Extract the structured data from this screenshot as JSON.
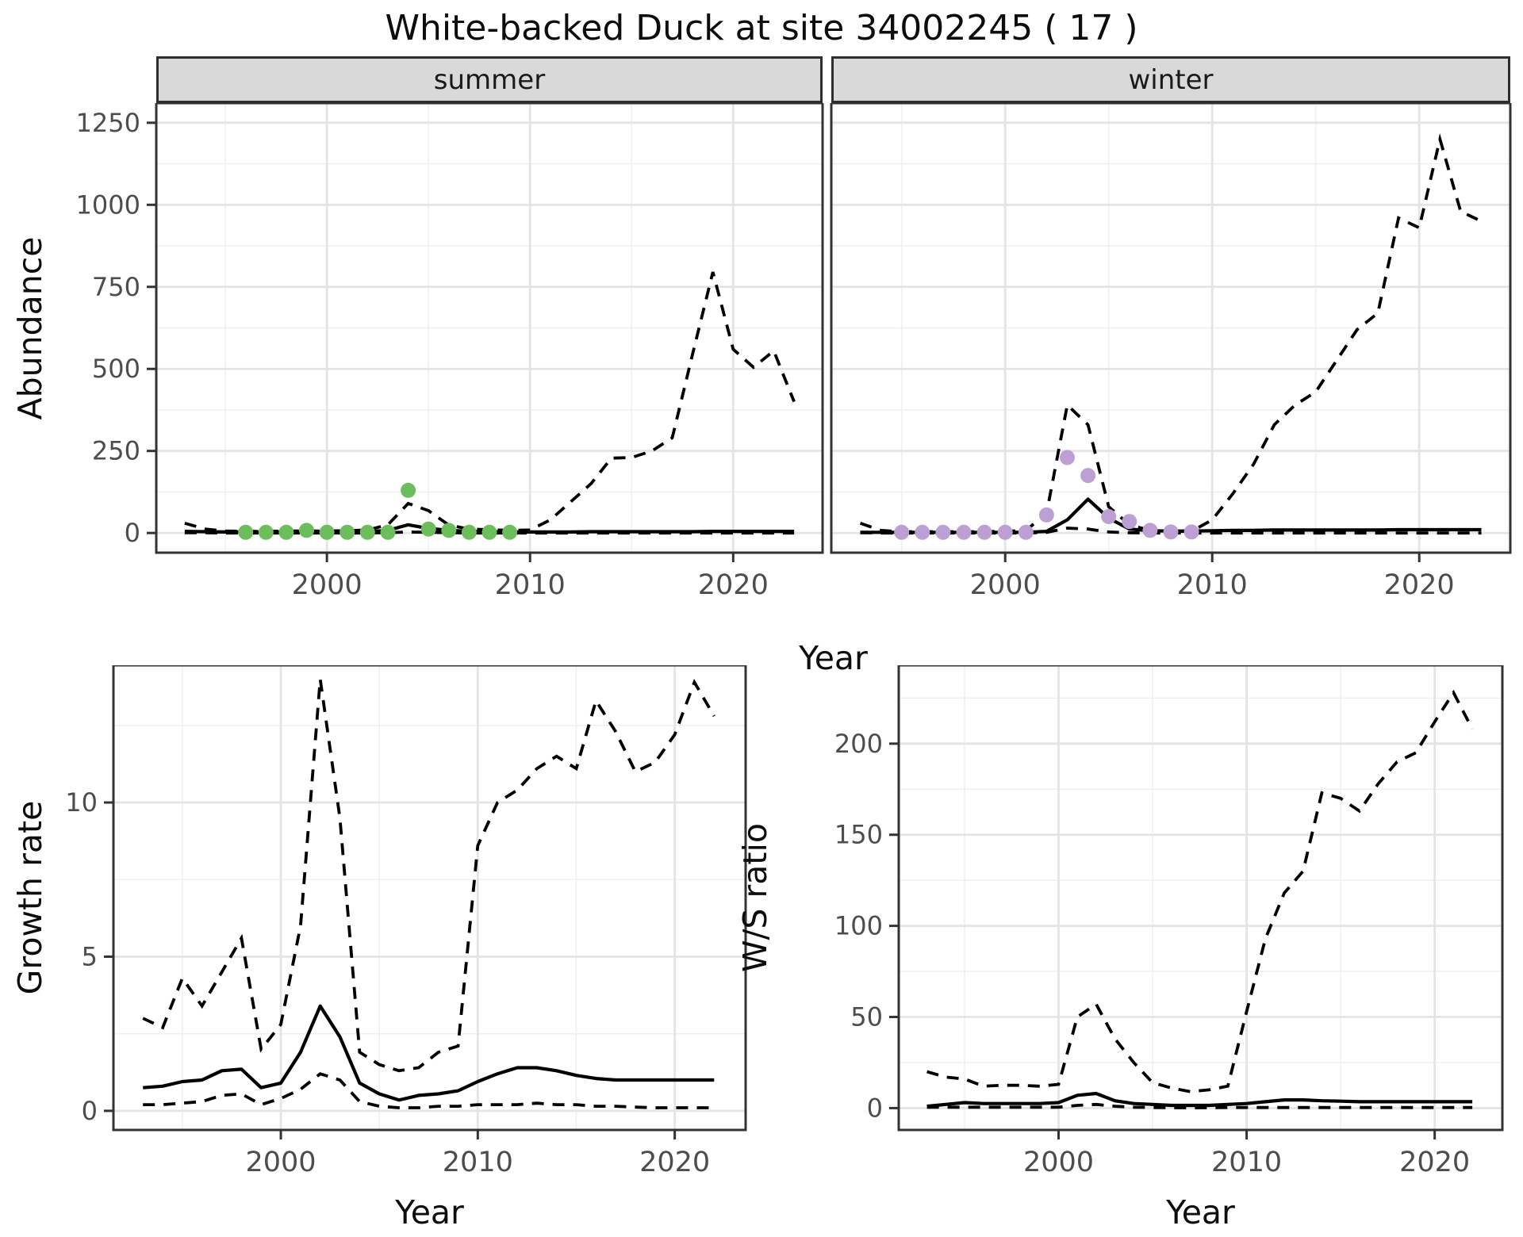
{
  "title": "White-backed Duck at site 34002245 ( 17 )",
  "colors": {
    "line": "#000000",
    "panel_border": "#333333",
    "strip_background": "#d9d9d9",
    "grid_major": "#e4e4e4",
    "grid_minor": "#f0f0f0",
    "tick_label": "#4d4d4d",
    "summer_points": "#6cbe5c",
    "winter_points": "#bca0d3"
  },
  "chart_data": [
    {
      "id": "abundance_by_season",
      "type": "line",
      "ylabel": "Abundance",
      "xlabel": "Year",
      "ylim": [
        0,
        1250
      ],
      "yticks": [
        0,
        250,
        500,
        750,
        1000,
        1250
      ],
      "xticks": [
        2000,
        2010,
        2020
      ],
      "grid": true,
      "line_styles": {
        "median": "solid",
        "upper": "dashed",
        "lower": "dashed"
      },
      "x": [
        1993,
        1994,
        1995,
        1996,
        1997,
        1998,
        1999,
        2000,
        2001,
        2002,
        2003,
        2004,
        2005,
        2006,
        2007,
        2008,
        2009,
        2010,
        2011,
        2012,
        2013,
        2014,
        2015,
        2016,
        2017,
        2018,
        2019,
        2020,
        2021,
        2022,
        2023
      ],
      "facets": [
        {
          "label": "summer",
          "point_color": "#6cbe5c",
          "median": [
            5,
            4,
            3,
            3,
            3,
            3,
            3,
            3,
            3,
            4,
            8,
            25,
            14,
            8,
            5,
            4,
            3,
            3,
            3,
            3,
            4,
            4,
            4,
            4,
            4,
            4,
            5,
            5,
            5,
            5,
            5
          ],
          "upper": [
            30,
            12,
            6,
            5,
            5,
            6,
            6,
            6,
            7,
            9,
            25,
            90,
            68,
            24,
            12,
            10,
            8,
            9,
            40,
            95,
            150,
            228,
            230,
            250,
            290,
            545,
            795,
            560,
            505,
            555,
            400
          ],
          "lower": [
            1,
            1,
            0,
            0,
            0,
            0,
            0,
            0,
            0,
            0,
            1,
            3,
            2,
            1,
            0,
            0,
            0,
            0,
            0,
            0,
            0,
            0,
            0,
            0,
            0,
            0,
            0,
            0,
            0,
            0,
            0
          ],
          "obs": {
            "x": [
              1996,
              1997,
              1998,
              1999,
              2000,
              2001,
              2002,
              2003,
              2004,
              2005,
              2006,
              2007,
              2008,
              2009
            ],
            "y": [
              2,
              2,
              2,
              8,
              2,
              2,
              2,
              2,
              130,
              12,
              8,
              2,
              2,
              2
            ]
          }
        },
        {
          "label": "winter",
          "point_color": "#bca0d3",
          "median": [
            2,
            2,
            2,
            2,
            2,
            2,
            2,
            2,
            2,
            5,
            40,
            103,
            45,
            12,
            7,
            6,
            6,
            7,
            8,
            8,
            9,
            9,
            9,
            9,
            9,
            9,
            10,
            10,
            10,
            10,
            10
          ],
          "upper": [
            30,
            8,
            4,
            4,
            4,
            4,
            4,
            5,
            8,
            60,
            390,
            330,
            80,
            25,
            8,
            5,
            5,
            40,
            120,
            210,
            330,
            390,
            430,
            525,
            620,
            670,
            960,
            930,
            1200,
            980,
            950
          ],
          "lower": [
            1,
            0,
            0,
            0,
            0,
            0,
            0,
            0,
            0,
            2,
            15,
            12,
            3,
            1,
            0,
            0,
            0,
            0,
            0,
            0,
            0,
            0,
            0,
            0,
            0,
            0,
            0,
            0,
            0,
            0,
            0
          ],
          "obs": {
            "x": [
              1995,
              1996,
              1997,
              1998,
              1999,
              2000,
              2001,
              2002,
              2003,
              2004,
              2005,
              2006,
              2007,
              2008,
              2009
            ],
            "y": [
              2,
              2,
              2,
              2,
              2,
              2,
              2,
              55,
              230,
              175,
              50,
              35,
              8,
              3,
              3
            ]
          }
        }
      ]
    },
    {
      "id": "growth_rate",
      "type": "line",
      "ylabel": "Growth rate",
      "xlabel": "Year",
      "ylim": [
        0,
        14
      ],
      "yticks": [
        0,
        5,
        10
      ],
      "xticks": [
        2000,
        2010,
        2020
      ],
      "grid": true,
      "line_styles": {
        "median": "solid",
        "upper": "dashed",
        "lower": "dashed"
      },
      "x": [
        1993,
        1994,
        1995,
        1996,
        1997,
        1998,
        1999,
        2000,
        2001,
        2002,
        2003,
        2004,
        2005,
        2006,
        2007,
        2008,
        2009,
        2010,
        2011,
        2012,
        2013,
        2014,
        2015,
        2016,
        2017,
        2018,
        2019,
        2020,
        2021,
        2022
      ],
      "median": [
        0.75,
        0.8,
        0.95,
        1.0,
        1.3,
        1.35,
        0.75,
        0.9,
        1.9,
        3.4,
        2.4,
        0.9,
        0.55,
        0.35,
        0.5,
        0.55,
        0.65,
        0.95,
        1.2,
        1.4,
        1.4,
        1.3,
        1.15,
        1.05,
        1.0,
        1.0,
        1.0,
        1.0,
        1.0,
        1.0
      ],
      "upper": [
        3.0,
        2.7,
        4.3,
        3.4,
        4.5,
        5.6,
        2.0,
        2.8,
        6.0,
        14.0,
        9.5,
        1.9,
        1.5,
        1.3,
        1.4,
        1.9,
        2.1,
        8.6,
        10.0,
        10.4,
        11.1,
        11.5,
        11.1,
        13.3,
        12.3,
        11.0,
        11.3,
        12.2,
        13.9,
        12.8
      ],
      "lower": [
        0.2,
        0.2,
        0.25,
        0.3,
        0.5,
        0.55,
        0.2,
        0.4,
        0.7,
        1.2,
        1.0,
        0.3,
        0.15,
        0.1,
        0.1,
        0.15,
        0.15,
        0.2,
        0.2,
        0.2,
        0.25,
        0.2,
        0.2,
        0.15,
        0.15,
        0.12,
        0.1,
        0.1,
        0.1,
        0.1
      ]
    },
    {
      "id": "winter_summer_ratio",
      "type": "line",
      "ylabel": "W/S ratio",
      "xlabel": "Year",
      "ylim": [
        0,
        230
      ],
      "yticks": [
        0,
        50,
        100,
        150,
        200
      ],
      "xticks": [
        2000,
        2010,
        2020
      ],
      "grid": true,
      "line_styles": {
        "median": "solid",
        "upper": "dashed",
        "lower": "dashed"
      },
      "x": [
        1993,
        1994,
        1995,
        1996,
        1997,
        1998,
        1999,
        2000,
        2001,
        2002,
        2003,
        2004,
        2005,
        2006,
        2007,
        2008,
        2009,
        2010,
        2011,
        2012,
        2013,
        2014,
        2015,
        2016,
        2017,
        2018,
        2019,
        2020,
        2021,
        2022
      ],
      "median": [
        1.0,
        2.0,
        3.0,
        2.5,
        2.5,
        2.5,
        2.5,
        3.0,
        7.0,
        8.0,
        4.0,
        2.5,
        2.0,
        1.5,
        1.5,
        1.5,
        2.0,
        2.5,
        3.5,
        4.5,
        4.5,
        4.0,
        3.8,
        3.5,
        3.5,
        3.5,
        3.5,
        3.5,
        3.5,
        3.5
      ],
      "upper": [
        20,
        17,
        16,
        12,
        12.5,
        12.5,
        12,
        13,
        50,
        57,
        38,
        25,
        14,
        11,
        9,
        10,
        12,
        53,
        93,
        118,
        130,
        173,
        170,
        163,
        178,
        190,
        195,
        212,
        228,
        208
      ],
      "lower": [
        0.5,
        0.5,
        0.5,
        0.5,
        0.5,
        0.5,
        0.5,
        0.5,
        1.5,
        2.0,
        1.0,
        0.5,
        0.3,
        0.2,
        0.2,
        0.2,
        0.3,
        0.3,
        0.3,
        0.3,
        0.3,
        0.3,
        0.3,
        0.3,
        0.3,
        0.3,
        0.3,
        0.3,
        0.3,
        0.3
      ]
    }
  ]
}
